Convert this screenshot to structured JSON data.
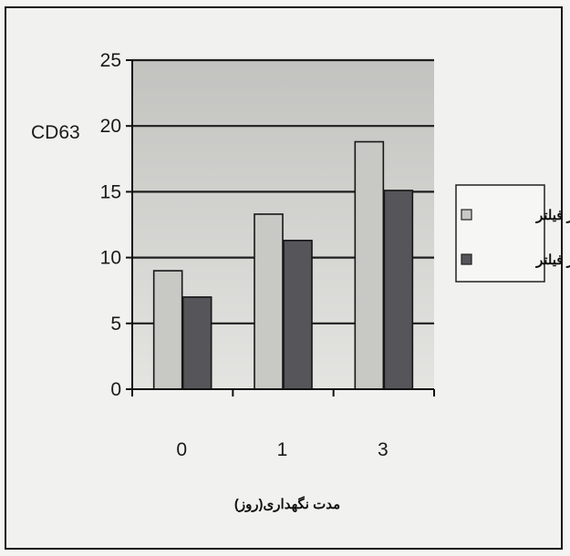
{
  "chart_data": {
    "type": "bar",
    "categories": [
      "0",
      "1",
      "3"
    ],
    "series": [
      {
        "name": "قبل از فیلتر",
        "values": [
          9,
          13.3,
          18.8
        ],
        "color": "#c8c8c4"
      },
      {
        "name": "بعد از فیلتر",
        "values": [
          7,
          11.3,
          15.1
        ],
        "color": "#55555a"
      }
    ],
    "ylabel": "CD63",
    "xlabel": "مدت نگهداری(روز)",
    "ylim": [
      0,
      25
    ],
    "yticks": [
      0,
      5,
      10,
      15,
      20,
      25
    ],
    "grid": true,
    "legend_position": "right"
  }
}
